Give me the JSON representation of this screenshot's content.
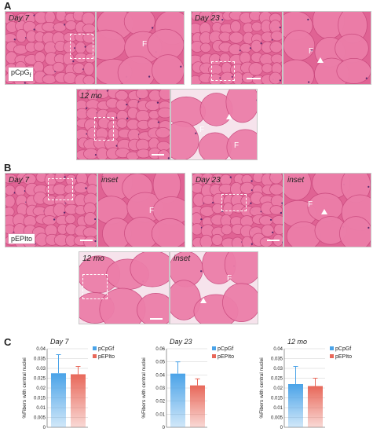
{
  "panels": {
    "A": {
      "letter": "A",
      "label": "pCpG",
      "label_sub": "f",
      "timepoints": [
        "Day 7",
        "Day 23",
        "12 mo"
      ],
      "fiber_label": "F"
    },
    "B": {
      "letter": "B",
      "label": "pEPIto",
      "timepoints": [
        "Day 7",
        "Day 23",
        "12 mo"
      ],
      "inset_label": "inset",
      "fiber_label": "F"
    },
    "C": {
      "letter": "C"
    }
  },
  "colors": {
    "tissue": "#e06394",
    "fiber": "#ec7ea9",
    "gap": "#f6e3ec",
    "series_pcpgf": "#4aa3e8",
    "series_pepito": "#e8685a"
  },
  "chart_data": [
    {
      "type": "bar",
      "title": "Day 7",
      "ylabel": "%Fibers with central nuclei",
      "ylim": [
        0,
        0.04
      ],
      "yticks": [
        "0",
        "0.005",
        "0.01",
        "0.015",
        "0.02",
        "0.025",
        "0.03",
        "0.035",
        "0.04"
      ],
      "tick_values": [
        0,
        0.005,
        0.01,
        0.015,
        0.02,
        0.025,
        0.03,
        0.035,
        0.04
      ],
      "series": [
        {
          "name": "pCpGf",
          "values": [
            0.0275
          ],
          "error": [
            0.0095
          ]
        },
        {
          "name": "pEPIto",
          "values": [
            0.027
          ],
          "error": [
            0.004
          ]
        }
      ]
    },
    {
      "type": "bar",
      "title": "Day 23",
      "ylabel": "%Fibers with central nuclei",
      "ylim": [
        0,
        0.06
      ],
      "yticks": [
        "0",
        "0.01",
        "0.02",
        "0.03",
        "0.04",
        "0.05",
        "0.06"
      ],
      "tick_values": [
        0,
        0.01,
        0.02,
        0.03,
        0.04,
        0.05,
        0.06
      ],
      "series": [
        {
          "name": "pCpGf",
          "values": [
            0.041
          ],
          "error": [
            0.009
          ]
        },
        {
          "name": "pEPIto",
          "values": [
            0.032
          ],
          "error": [
            0.005
          ]
        }
      ]
    },
    {
      "type": "bar",
      "title": "12 mo",
      "ylabel": "%Fibers with central nuclei",
      "ylim": [
        0,
        0.04
      ],
      "yticks": [
        "0",
        "0.005",
        "0.01",
        "0.015",
        "0.02",
        "0.025",
        "0.03",
        "0.035",
        "0.04"
      ],
      "tick_values": [
        0,
        0.005,
        0.01,
        0.015,
        0.02,
        0.025,
        0.03,
        0.035,
        0.04
      ],
      "series": [
        {
          "name": "pCpGf",
          "values": [
            0.022
          ],
          "error": [
            0.009
          ]
        },
        {
          "name": "pEPIto",
          "values": [
            0.021
          ],
          "error": [
            0.004
          ]
        }
      ]
    }
  ]
}
